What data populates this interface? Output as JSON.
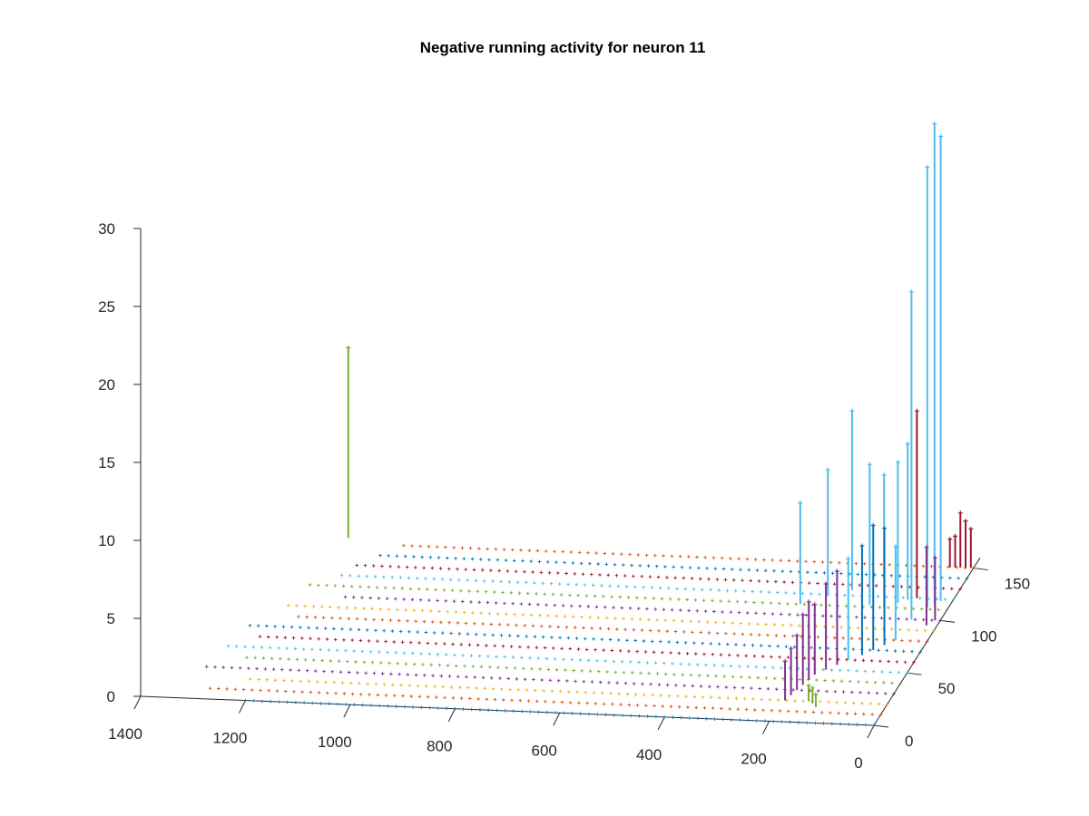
{
  "chart_data": {
    "type": "3d-stem",
    "title": "Negative running activity for neuron 11",
    "xlabel": "",
    "ylabel": "",
    "zlabel": "",
    "x_ticks": [
      "1400",
      "1200",
      "1000",
      "800",
      "600",
      "400",
      "200",
      "0"
    ],
    "y_ticks": [
      "0",
      "50",
      "100",
      "150"
    ],
    "z_ticks": [
      "0",
      "5",
      "10",
      "15",
      "20",
      "25",
      "30"
    ],
    "xlim": [
      0,
      1400
    ],
    "ylim": [
      0,
      160
    ],
    "zlim": [
      0,
      30
    ],
    "grid": false,
    "legend": "none",
    "colors": [
      "#0072BD",
      "#D95319",
      "#EDB120",
      "#7E2F8E",
      "#77AC30",
      "#4DBEEE",
      "#A2142F"
    ],
    "baseline_rows": [
      {
        "y": 0,
        "x_start": 0,
        "x_end": 1200
      },
      {
        "y": 10,
        "x_start": 0,
        "x_end": 1290
      },
      {
        "y": 20,
        "x_start": 0,
        "x_end": 1230
      },
      {
        "y": 30,
        "x_start": 0,
        "x_end": 1320
      },
      {
        "y": 40,
        "x_start": 0,
        "x_end": 1260
      },
      {
        "y": 50,
        "x_start": 0,
        "x_end": 1300
      },
      {
        "y": 60,
        "x_start": 0,
        "x_end": 1250
      },
      {
        "y": 70,
        "x_start": 0,
        "x_end": 1280
      },
      {
        "y": 80,
        "x_start": 0,
        "x_end": 1200
      },
      {
        "y": 90,
        "x_start": 0,
        "x_end": 1240
      },
      {
        "y": 100,
        "x_start": 0,
        "x_end": 1150
      },
      {
        "y": 110,
        "x_start": 0,
        "x_end": 1220
      },
      {
        "y": 120,
        "x_start": 0,
        "x_end": 1180
      },
      {
        "y": 130,
        "x_start": 0,
        "x_end": 1160
      },
      {
        "y": 140,
        "x_start": 0,
        "x_end": 1120
      },
      {
        "y": 150,
        "x_start": 0,
        "x_end": 1100
      }
    ],
    "stems": [
      {
        "x": 1200,
        "y": 155,
        "z": 12.2,
        "color": "#77AC30"
      },
      {
        "x": 30,
        "y": 115,
        "z": 30.8,
        "color": "#4DBEEE"
      },
      {
        "x": 22,
        "y": 118,
        "z": 29.8,
        "color": "#4DBEEE"
      },
      {
        "x": 40,
        "y": 112,
        "z": 28.2,
        "color": "#4DBEEE"
      },
      {
        "x": 55,
        "y": 100,
        "z": 21.0,
        "color": "#4DBEEE"
      },
      {
        "x": 70,
        "y": 120,
        "z": 12.0,
        "color": "#A2142F"
      },
      {
        "x": 85,
        "y": 118,
        "z": 10.0,
        "color": "#4DBEEE"
      },
      {
        "x": 100,
        "y": 115,
        "z": 9.0,
        "color": "#4DBEEE"
      },
      {
        "x": 120,
        "y": 110,
        "z": 8.5,
        "color": "#4DBEEE"
      },
      {
        "x": 150,
        "y": 112,
        "z": 9.0,
        "color": "#4DBEEE"
      },
      {
        "x": 200,
        "y": 125,
        "z": 11.5,
        "color": "#4DBEEE"
      },
      {
        "x": 240,
        "y": 120,
        "z": 8.0,
        "color": "#4DBEEE"
      },
      {
        "x": 280,
        "y": 110,
        "z": 6.5,
        "color": "#4DBEEE"
      },
      {
        "x": 5,
        "y": 150,
        "z": 2.5,
        "color": "#A2142F"
      },
      {
        "x": 15,
        "y": 150,
        "z": 3.0,
        "color": "#A2142F"
      },
      {
        "x": 25,
        "y": 150,
        "z": 3.5,
        "color": "#A2142F"
      },
      {
        "x": 35,
        "y": 150,
        "z": 2.0,
        "color": "#A2142F"
      },
      {
        "x": 45,
        "y": 150,
        "z": 1.8,
        "color": "#A2142F"
      },
      {
        "x": 10,
        "y": 100,
        "z": 4.0,
        "color": "#7E2F8E"
      },
      {
        "x": 20,
        "y": 95,
        "z": 5.0,
        "color": "#7E2F8E"
      },
      {
        "x": 60,
        "y": 80,
        "z": 6.0,
        "color": "#4DBEEE"
      },
      {
        "x": 75,
        "y": 75,
        "z": 7.5,
        "color": "#0072BD"
      },
      {
        "x": 90,
        "y": 70,
        "z": 8.0,
        "color": "#0072BD"
      },
      {
        "x": 105,
        "y": 65,
        "z": 7.0,
        "color": "#0072BD"
      },
      {
        "x": 125,
        "y": 60,
        "z": 6.5,
        "color": "#4DBEEE"
      },
      {
        "x": 140,
        "y": 55,
        "z": 6.0,
        "color": "#7E2F8E"
      },
      {
        "x": 155,
        "y": 50,
        "z": 5.5,
        "color": "#7E2F8E"
      },
      {
        "x": 170,
        "y": 45,
        "z": 4.5,
        "color": "#7E2F8E"
      },
      {
        "x": 175,
        "y": 40,
        "z": 5.0,
        "color": "#7E2F8E"
      },
      {
        "x": 180,
        "y": 35,
        "z": 4.5,
        "color": "#7E2F8E"
      },
      {
        "x": 185,
        "y": 30,
        "z": 3.5,
        "color": "#7E2F8E"
      },
      {
        "x": 190,
        "y": 25,
        "z": 3.0,
        "color": "#7E2F8E"
      },
      {
        "x": 195,
        "y": 20,
        "z": 2.5,
        "color": "#7E2F8E"
      },
      {
        "x": 150,
        "y": 20,
        "z": 1.0,
        "color": "#77AC30"
      },
      {
        "x": 140,
        "y": 18,
        "z": 1.0,
        "color": "#77AC30"
      },
      {
        "x": 130,
        "y": 15,
        "z": 0.8,
        "color": "#77AC30"
      }
    ]
  }
}
